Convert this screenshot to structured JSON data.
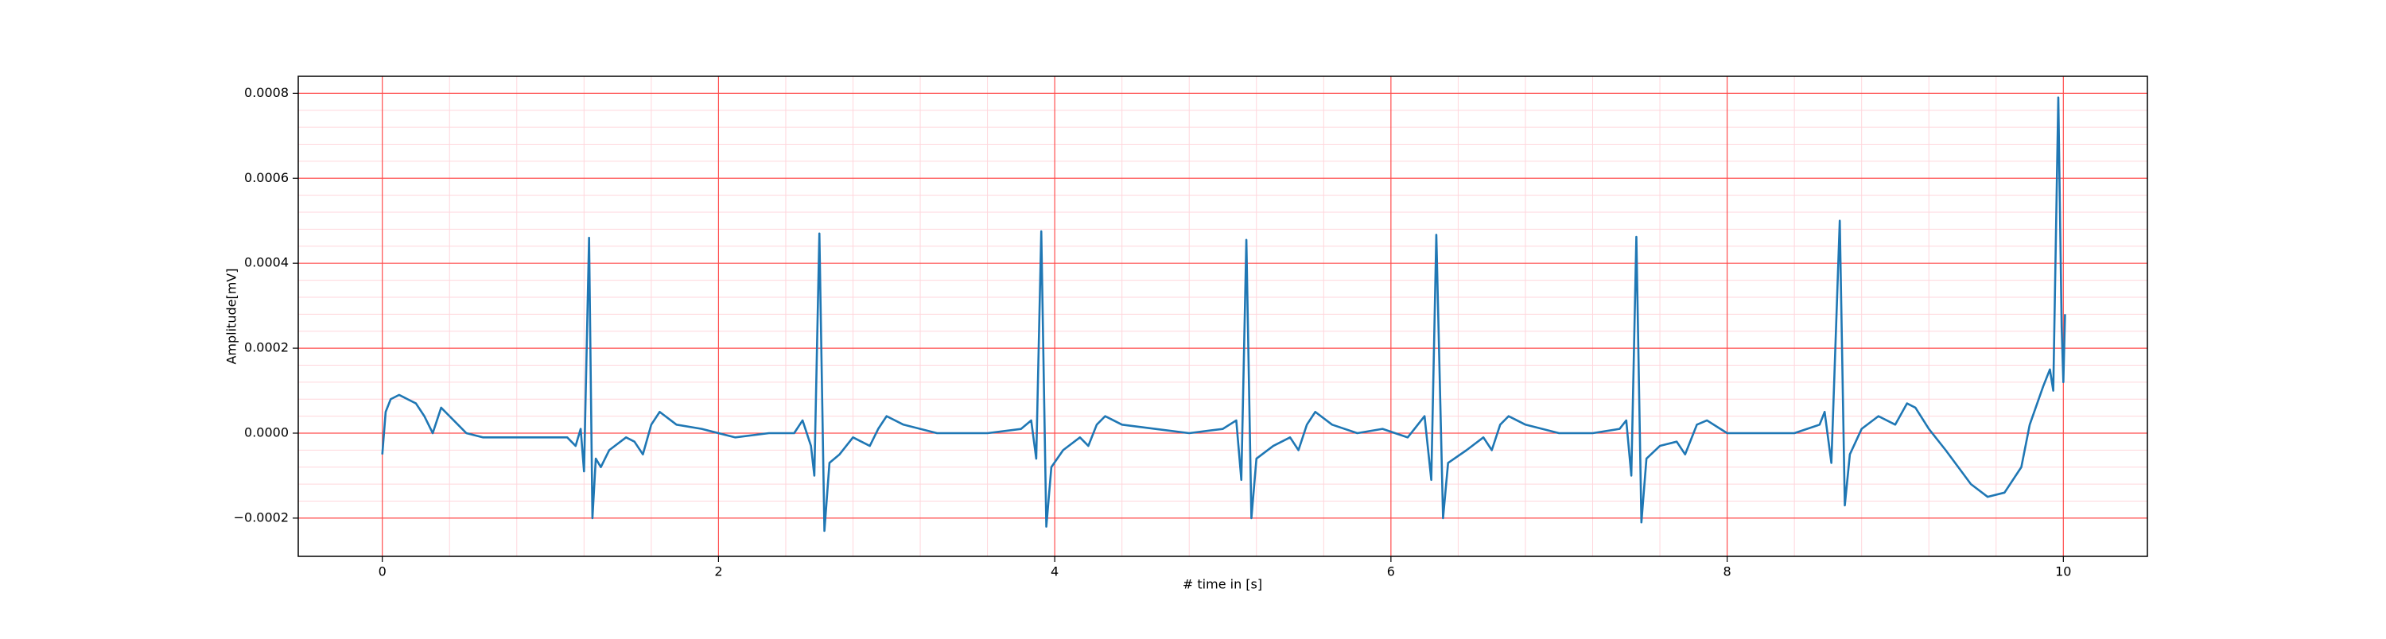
{
  "chart_data": {
    "type": "line",
    "xlabel": "# time in [s]",
    "ylabel": "Amplitude[mV]",
    "xlim": [
      -0.5,
      10.5
    ],
    "ylim": [
      -0.00029,
      0.00084
    ],
    "xticks": [
      0,
      2,
      4,
      6,
      8,
      10
    ],
    "yticks": [
      {
        "value": -0.0002,
        "label": "−0.0002"
      },
      {
        "value": 0,
        "label": "0.0000"
      },
      0.0002,
      0.0004,
      0.0006,
      0.0008
    ],
    "grid": true,
    "grid_color": "#ff4d4d",
    "minor_grid": true,
    "minor_grid_color": "#ffd6dc",
    "series": [
      {
        "color": "#1f77b4",
        "x": [
          0,
          0.02,
          0.05,
          0.1,
          0.15,
          0.2,
          0.25,
          0.3,
          0.35,
          0.4,
          0.45,
          0.5,
          0.6,
          0.7,
          0.8,
          0.9,
          1.0,
          1.1,
          1.15,
          1.18,
          1.2,
          1.23,
          1.25,
          1.27,
          1.3,
          1.35,
          1.45,
          1.5,
          1.55,
          1.6,
          1.65,
          1.75,
          1.9,
          2.1,
          2.3,
          2.45,
          2.5,
          2.55,
          2.57,
          2.6,
          2.63,
          2.66,
          2.72,
          2.8,
          2.9,
          2.95,
          3.0,
          3.1,
          3.3,
          3.6,
          3.8,
          3.86,
          3.89,
          3.92,
          3.95,
          3.98,
          4.05,
          4.15,
          4.2,
          4.25,
          4.3,
          4.4,
          4.6,
          4.8,
          5.0,
          5.08,
          5.11,
          5.14,
          5.17,
          5.2,
          5.3,
          5.4,
          5.45,
          5.5,
          5.55,
          5.65,
          5.8,
          5.95,
          6.1,
          6.2,
          6.24,
          6.27,
          6.31,
          6.34,
          6.45,
          6.55,
          6.6,
          6.65,
          6.7,
          6.8,
          7.0,
          7.2,
          7.36,
          7.4,
          7.43,
          7.46,
          7.49,
          7.52,
          7.6,
          7.7,
          7.75,
          7.82,
          7.88,
          8.0,
          8.2,
          8.4,
          8.55,
          8.58,
          8.62,
          8.67,
          8.7,
          8.73,
          8.8,
          8.9,
          9.0,
          9.07,
          9.12,
          9.2,
          9.3,
          9.45,
          9.55,
          9.65,
          9.75,
          9.8,
          9.88,
          9.92,
          9.94,
          9.97,
          9.99,
          10.0,
          10.01
        ],
        "values": [
          -5e-05,
          5e-05,
          8e-05,
          9e-05,
          8e-05,
          7e-05,
          4e-05,
          0.0,
          6e-05,
          4e-05,
          2e-05,
          0.0,
          -1e-05,
          -1e-05,
          -1e-05,
          -1e-05,
          -1e-05,
          -1e-05,
          -3e-05,
          1e-05,
          -9e-05,
          0.00046,
          -0.0002,
          -6e-05,
          -8e-05,
          -4e-05,
          -1e-05,
          -2e-05,
          -5e-05,
          2e-05,
          5e-05,
          2e-05,
          1e-05,
          -1e-05,
          0.0,
          0.0,
          3e-05,
          -3e-05,
          -0.0001,
          0.00047,
          -0.00023,
          -7e-05,
          -5e-05,
          -1e-05,
          -3e-05,
          1e-05,
          4e-05,
          2e-05,
          0.0,
          0.0,
          1e-05,
          3e-05,
          -6e-05,
          0.000475,
          -0.00022,
          -8e-05,
          -4e-05,
          -1e-05,
          -3e-05,
          2e-05,
          4e-05,
          2e-05,
          1e-05,
          0.0,
          1e-05,
          3e-05,
          -0.00011,
          0.000455,
          -0.0002,
          -6e-05,
          -3e-05,
          -1e-05,
          -4e-05,
          2e-05,
          5e-05,
          2e-05,
          0.0,
          1e-05,
          -1e-05,
          4e-05,
          -0.00011,
          0.000467,
          -0.0002,
          -7e-05,
          -4e-05,
          -1e-05,
          -4e-05,
          2e-05,
          4e-05,
          2e-05,
          0.0,
          0.0,
          1e-05,
          3e-05,
          -0.0001,
          0.000462,
          -0.00021,
          -6e-05,
          -3e-05,
          -2e-05,
          -5e-05,
          2e-05,
          3e-05,
          0.0,
          0.0,
          0.0,
          2e-05,
          5e-05,
          -7e-05,
          0.0005,
          -0.00017,
          -5e-05,
          1e-05,
          4e-05,
          2e-05,
          7e-05,
          6e-05,
          1e-05,
          -4e-05,
          -0.00012,
          -0.00015,
          -0.00014,
          -8e-05,
          2e-05,
          0.00011,
          0.00015,
          0.0001,
          0.00079,
          0.00025,
          0.00012,
          0.00028
        ]
      }
    ]
  }
}
